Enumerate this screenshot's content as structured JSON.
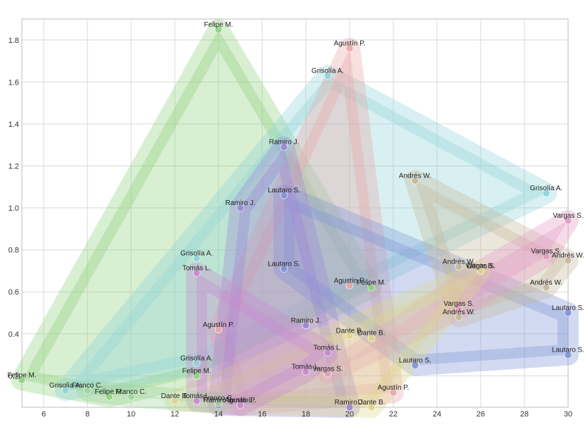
{
  "chart_data": {
    "type": "scatter",
    "title": "",
    "xlabel": "",
    "ylabel": "",
    "xlim": [
      5,
      30
    ],
    "ylim": [
      0.05,
      1.9
    ],
    "x_ticks": [
      6,
      8,
      10,
      12,
      14,
      16,
      18,
      20,
      22,
      24,
      26,
      28,
      30
    ],
    "y_ticks": [
      0.2,
      0.4,
      0.6,
      0.8,
      1.0,
      1.2,
      1.4,
      1.6,
      1.8
    ],
    "x_tick_labels": [
      "6",
      "8",
      "10",
      "12",
      "14",
      "16",
      "18",
      "20",
      "22",
      "24",
      "26",
      "28",
      "30"
    ],
    "y_tick_labels": [
      "0.2",
      "0.4",
      "0.6",
      "0.8",
      "1.0",
      "1.2",
      "1.4",
      "1.6",
      "1.8"
    ],
    "grid": true,
    "series": [
      {
        "color": "#8fd07f",
        "points": [
          {
            "x": 14,
            "y": 1.85,
            "label": "Felipe M."
          },
          {
            "x": 5,
            "y": 0.18,
            "label": "Felipe M."
          },
          {
            "x": 9,
            "y": 0.1,
            "label": "Felipe M."
          },
          {
            "x": 13,
            "y": 0.2,
            "label": "Felipe M."
          },
          {
            "x": 21,
            "y": 0.62,
            "label": "Felipe M."
          }
        ]
      },
      {
        "color": "#8fd4d6",
        "points": [
          {
            "x": 19,
            "y": 1.63,
            "label": "Grisolía A."
          },
          {
            "x": 29,
            "y": 1.07,
            "label": "Grisolía A."
          },
          {
            "x": 7,
            "y": 0.13,
            "label": "Grisolía A."
          },
          {
            "x": 13,
            "y": 0.76,
            "label": "Grisolía A."
          },
          {
            "x": 13,
            "y": 0.26,
            "label": "Grisolía A."
          }
        ]
      },
      {
        "color": "#e9a7a7",
        "points": [
          {
            "x": 20,
            "y": 1.76,
            "label": "Agustín P."
          },
          {
            "x": 22,
            "y": 0.12,
            "label": "Agustín P."
          },
          {
            "x": 14,
            "y": 0.42,
            "label": "Agustín P."
          },
          {
            "x": 20,
            "y": 0.63,
            "label": "Agustín P."
          },
          {
            "x": 15,
            "y": 0.06,
            "label": "Agustín P."
          }
        ]
      },
      {
        "color": "#7f94d6",
        "points": [
          {
            "x": 17,
            "y": 1.06,
            "label": "Lautaro S."
          },
          {
            "x": 17,
            "y": 0.71,
            "label": "Lautaro S."
          },
          {
            "x": 30,
            "y": 0.5,
            "label": "Lautaro S."
          },
          {
            "x": 30,
            "y": 0.3,
            "label": "Lautaro S."
          },
          {
            "x": 23,
            "y": 0.25,
            "label": "Lautaro S."
          }
        ]
      },
      {
        "color": "#9a86d6",
        "points": [
          {
            "x": 17,
            "y": 1.29,
            "label": "Ramiro J."
          },
          {
            "x": 15,
            "y": 1.0,
            "label": "Ramiro J."
          },
          {
            "x": 18,
            "y": 0.44,
            "label": "Ramiro J."
          },
          {
            "x": 20,
            "y": 0.05,
            "label": "Ramiro J."
          },
          {
            "x": 14,
            "y": 0.06,
            "label": "Ramiro J."
          }
        ]
      },
      {
        "color": "#c5b79a",
        "points": [
          {
            "x": 23,
            "y": 1.13,
            "label": "Andrés W."
          },
          {
            "x": 25,
            "y": 0.72,
            "label": "Andrés W."
          },
          {
            "x": 25,
            "y": 0.48,
            "label": "Andrés W."
          },
          {
            "x": 29,
            "y": 0.62,
            "label": "Andrés W."
          },
          {
            "x": 30,
            "y": 0.75,
            "label": "Andrés W."
          }
        ]
      },
      {
        "color": "#e49ac5",
        "points": [
          {
            "x": 30,
            "y": 0.94,
            "label": "Vargas S."
          },
          {
            "x": 29,
            "y": 0.77,
            "label": "Vargas S."
          },
          {
            "x": 25,
            "y": 0.52,
            "label": "Vargas S."
          },
          {
            "x": 26,
            "y": 0.7,
            "label": "Vargas S."
          },
          {
            "x": 19,
            "y": 0.21,
            "label": "Vargas S."
          }
        ]
      },
      {
        "color": "#dcd68c",
        "points": [
          {
            "x": 20,
            "y": 0.39,
            "label": "Dante B."
          },
          {
            "x": 21,
            "y": 0.38,
            "label": "Dante B."
          },
          {
            "x": 21,
            "y": 0.05,
            "label": "Dante B."
          },
          {
            "x": 26,
            "y": 0.7,
            "label": "Dante B."
          },
          {
            "x": 12,
            "y": 0.08,
            "label": "Dante B."
          }
        ]
      },
      {
        "color": "#c98ad2",
        "points": [
          {
            "x": 13,
            "y": 0.69,
            "label": "Tomás L."
          },
          {
            "x": 19,
            "y": 0.31,
            "label": "Tomás L."
          },
          {
            "x": 18,
            "y": 0.22,
            "label": "Tomás L."
          },
          {
            "x": 13,
            "y": 0.08,
            "label": "Tomás L."
          },
          {
            "x": 15,
            "y": 0.06,
            "label": "Tomás L."
          }
        ]
      },
      {
        "color": "#9ed49a",
        "points": [
          {
            "x": 8,
            "y": 0.13,
            "label": "Franco C."
          },
          {
            "x": 10,
            "y": 0.1,
            "label": "Franco C."
          },
          {
            "x": 14,
            "y": 0.07,
            "label": "Franco C."
          }
        ]
      }
    ]
  },
  "colors": {
    "background": "#ffffff",
    "grid": "#d8d8d8",
    "tick_text": "#333333",
    "label_text": "#222222"
  }
}
